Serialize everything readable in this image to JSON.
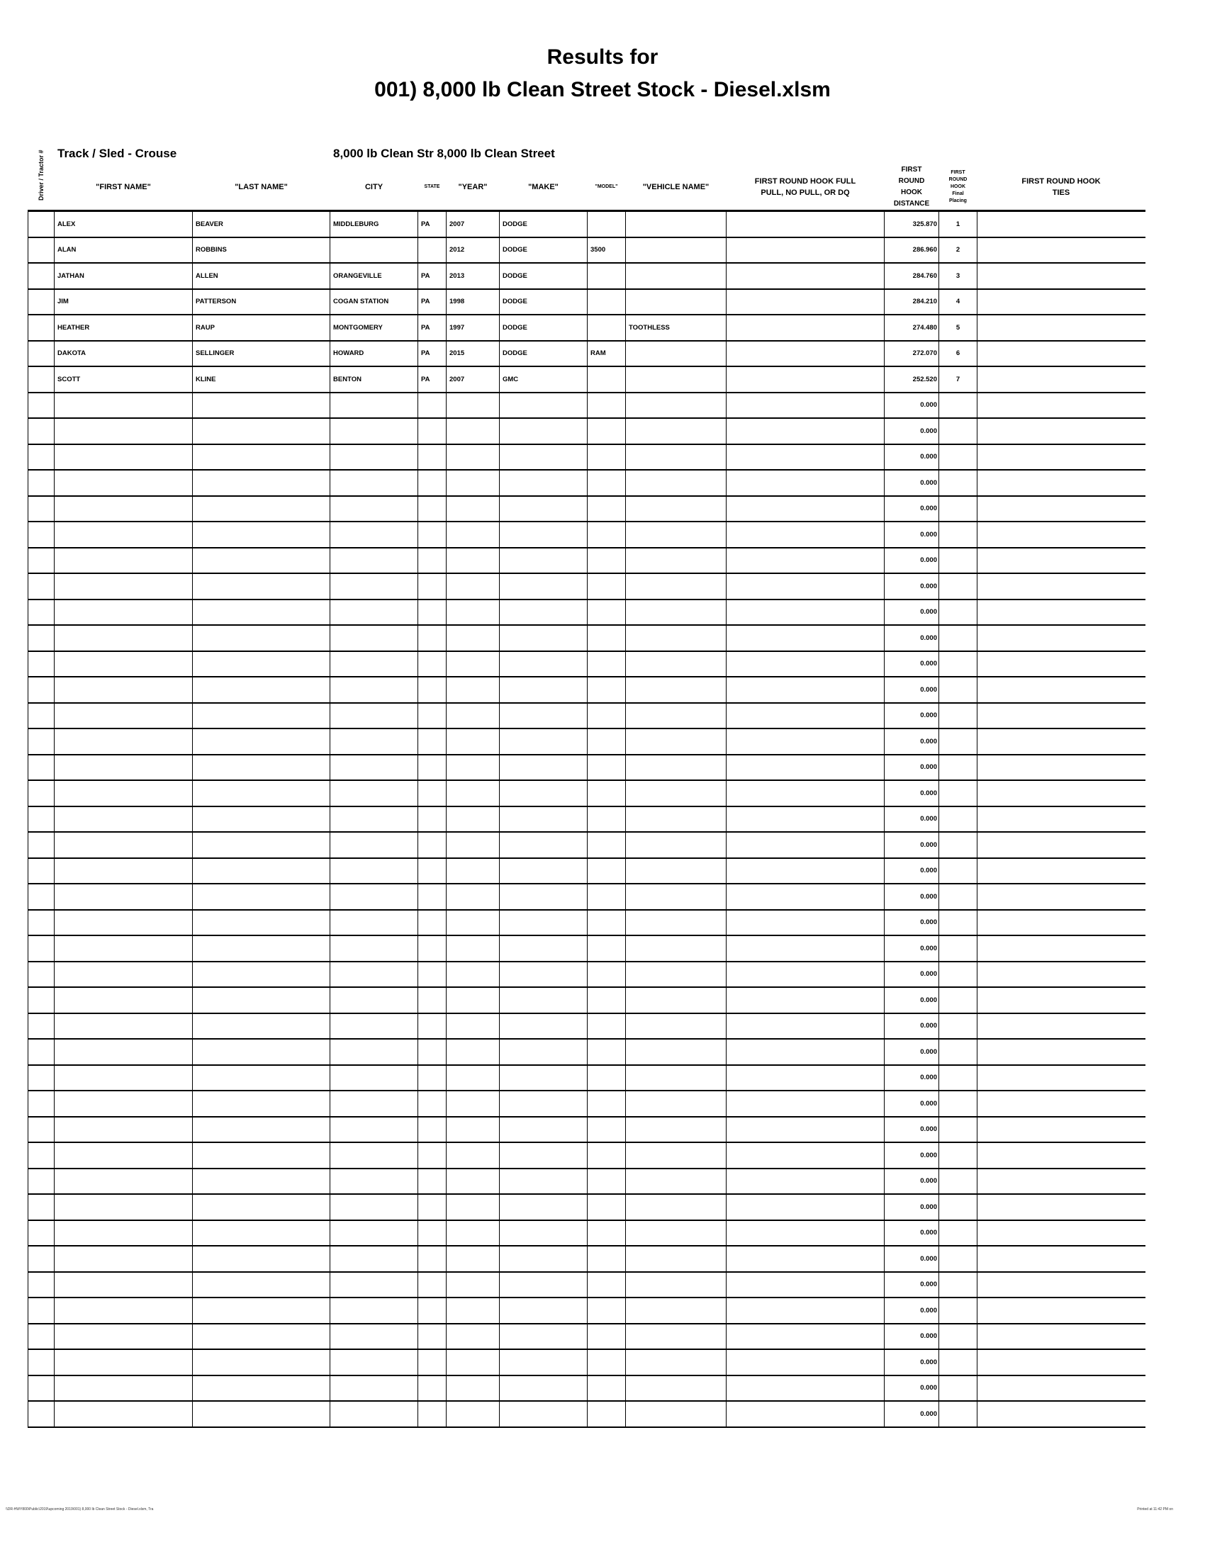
{
  "title_line1": "Results for",
  "title_line2": "001) 8,000 lb Clean Street Stock - Diesel.xlsm",
  "track_label": "Track / Sled - Crouse",
  "class_label": "8,000 lb Clean Str 8,000 lb Clean Street",
  "headers": {
    "driver_tractor": "Driver / Tractor #",
    "first_name": "\"FIRST NAME\"",
    "last_name": "\"LAST NAME\"",
    "city": "CITY",
    "state": "STATE",
    "year": "\"YEAR\"",
    "make": "\"MAKE\"",
    "model": "\"MODEL\"",
    "vehicle_name": "\"VEHICLE NAME\"",
    "full_pull": "FIRST ROUND HOOK FULL PULL, NO PULL, OR DQ",
    "distance": "FIRST ROUND HOOK DISTANCE",
    "placing": "FIRST ROUND HOOK Final Placing",
    "ties": "FIRST ROUND HOOK TIES"
  },
  "rows": [
    {
      "first": "ALEX",
      "last": "BEAVER",
      "city": "MIDDLEBURG",
      "state": "PA",
      "year": "2007",
      "make": "DODGE",
      "model": "",
      "vehicle": "",
      "distance": "325.870",
      "placing": "1"
    },
    {
      "first": "ALAN",
      "last": "ROBBINS",
      "city": "",
      "state": "",
      "year": "2012",
      "make": "DODGE",
      "model": "3500",
      "vehicle": "",
      "distance": "286.960",
      "placing": "2"
    },
    {
      "first": "JATHAN",
      "last": "ALLEN",
      "city": "ORANGEVILLE",
      "state": "PA",
      "year": "2013",
      "make": "DODGE",
      "model": "",
      "vehicle": "",
      "distance": "284.760",
      "placing": "3"
    },
    {
      "first": "JIM",
      "last": "PATTERSON",
      "city": "COGAN STATION",
      "state": "PA",
      "year": "1998",
      "make": "DODGE",
      "model": "",
      "vehicle": "",
      "distance": "284.210",
      "placing": "4"
    },
    {
      "first": "HEATHER",
      "last": "RAUP",
      "city": "MONTGOMERY",
      "state": "PA",
      "year": "1997",
      "make": "DODGE",
      "model": "",
      "vehicle": "TOOTHLESS",
      "distance": "274.480",
      "placing": "5"
    },
    {
      "first": "DAKOTA",
      "last": "SELLINGER",
      "city": "HOWARD",
      "state": "PA",
      "year": "2015",
      "make": "DODGE",
      "model": "RAM",
      "vehicle": "",
      "distance": "272.070",
      "placing": "6"
    },
    {
      "first": "SCOTT",
      "last": "KLINE",
      "city": "BENTON",
      "state": "PA",
      "year": "2007",
      "make": "GMC",
      "model": "",
      "vehicle": "",
      "distance": "252.520",
      "placing": "7"
    }
  ],
  "empty_row_count": 40,
  "empty_distance": "0.000",
  "footer_left": "\\\\DR-HWY800\\Public\\2019\\upcoming 2019\\001) 8,000 lb Clean Street Stock - Diesel.xlsm, Tra",
  "footer_right": "Printed at 11:42 PM on"
}
